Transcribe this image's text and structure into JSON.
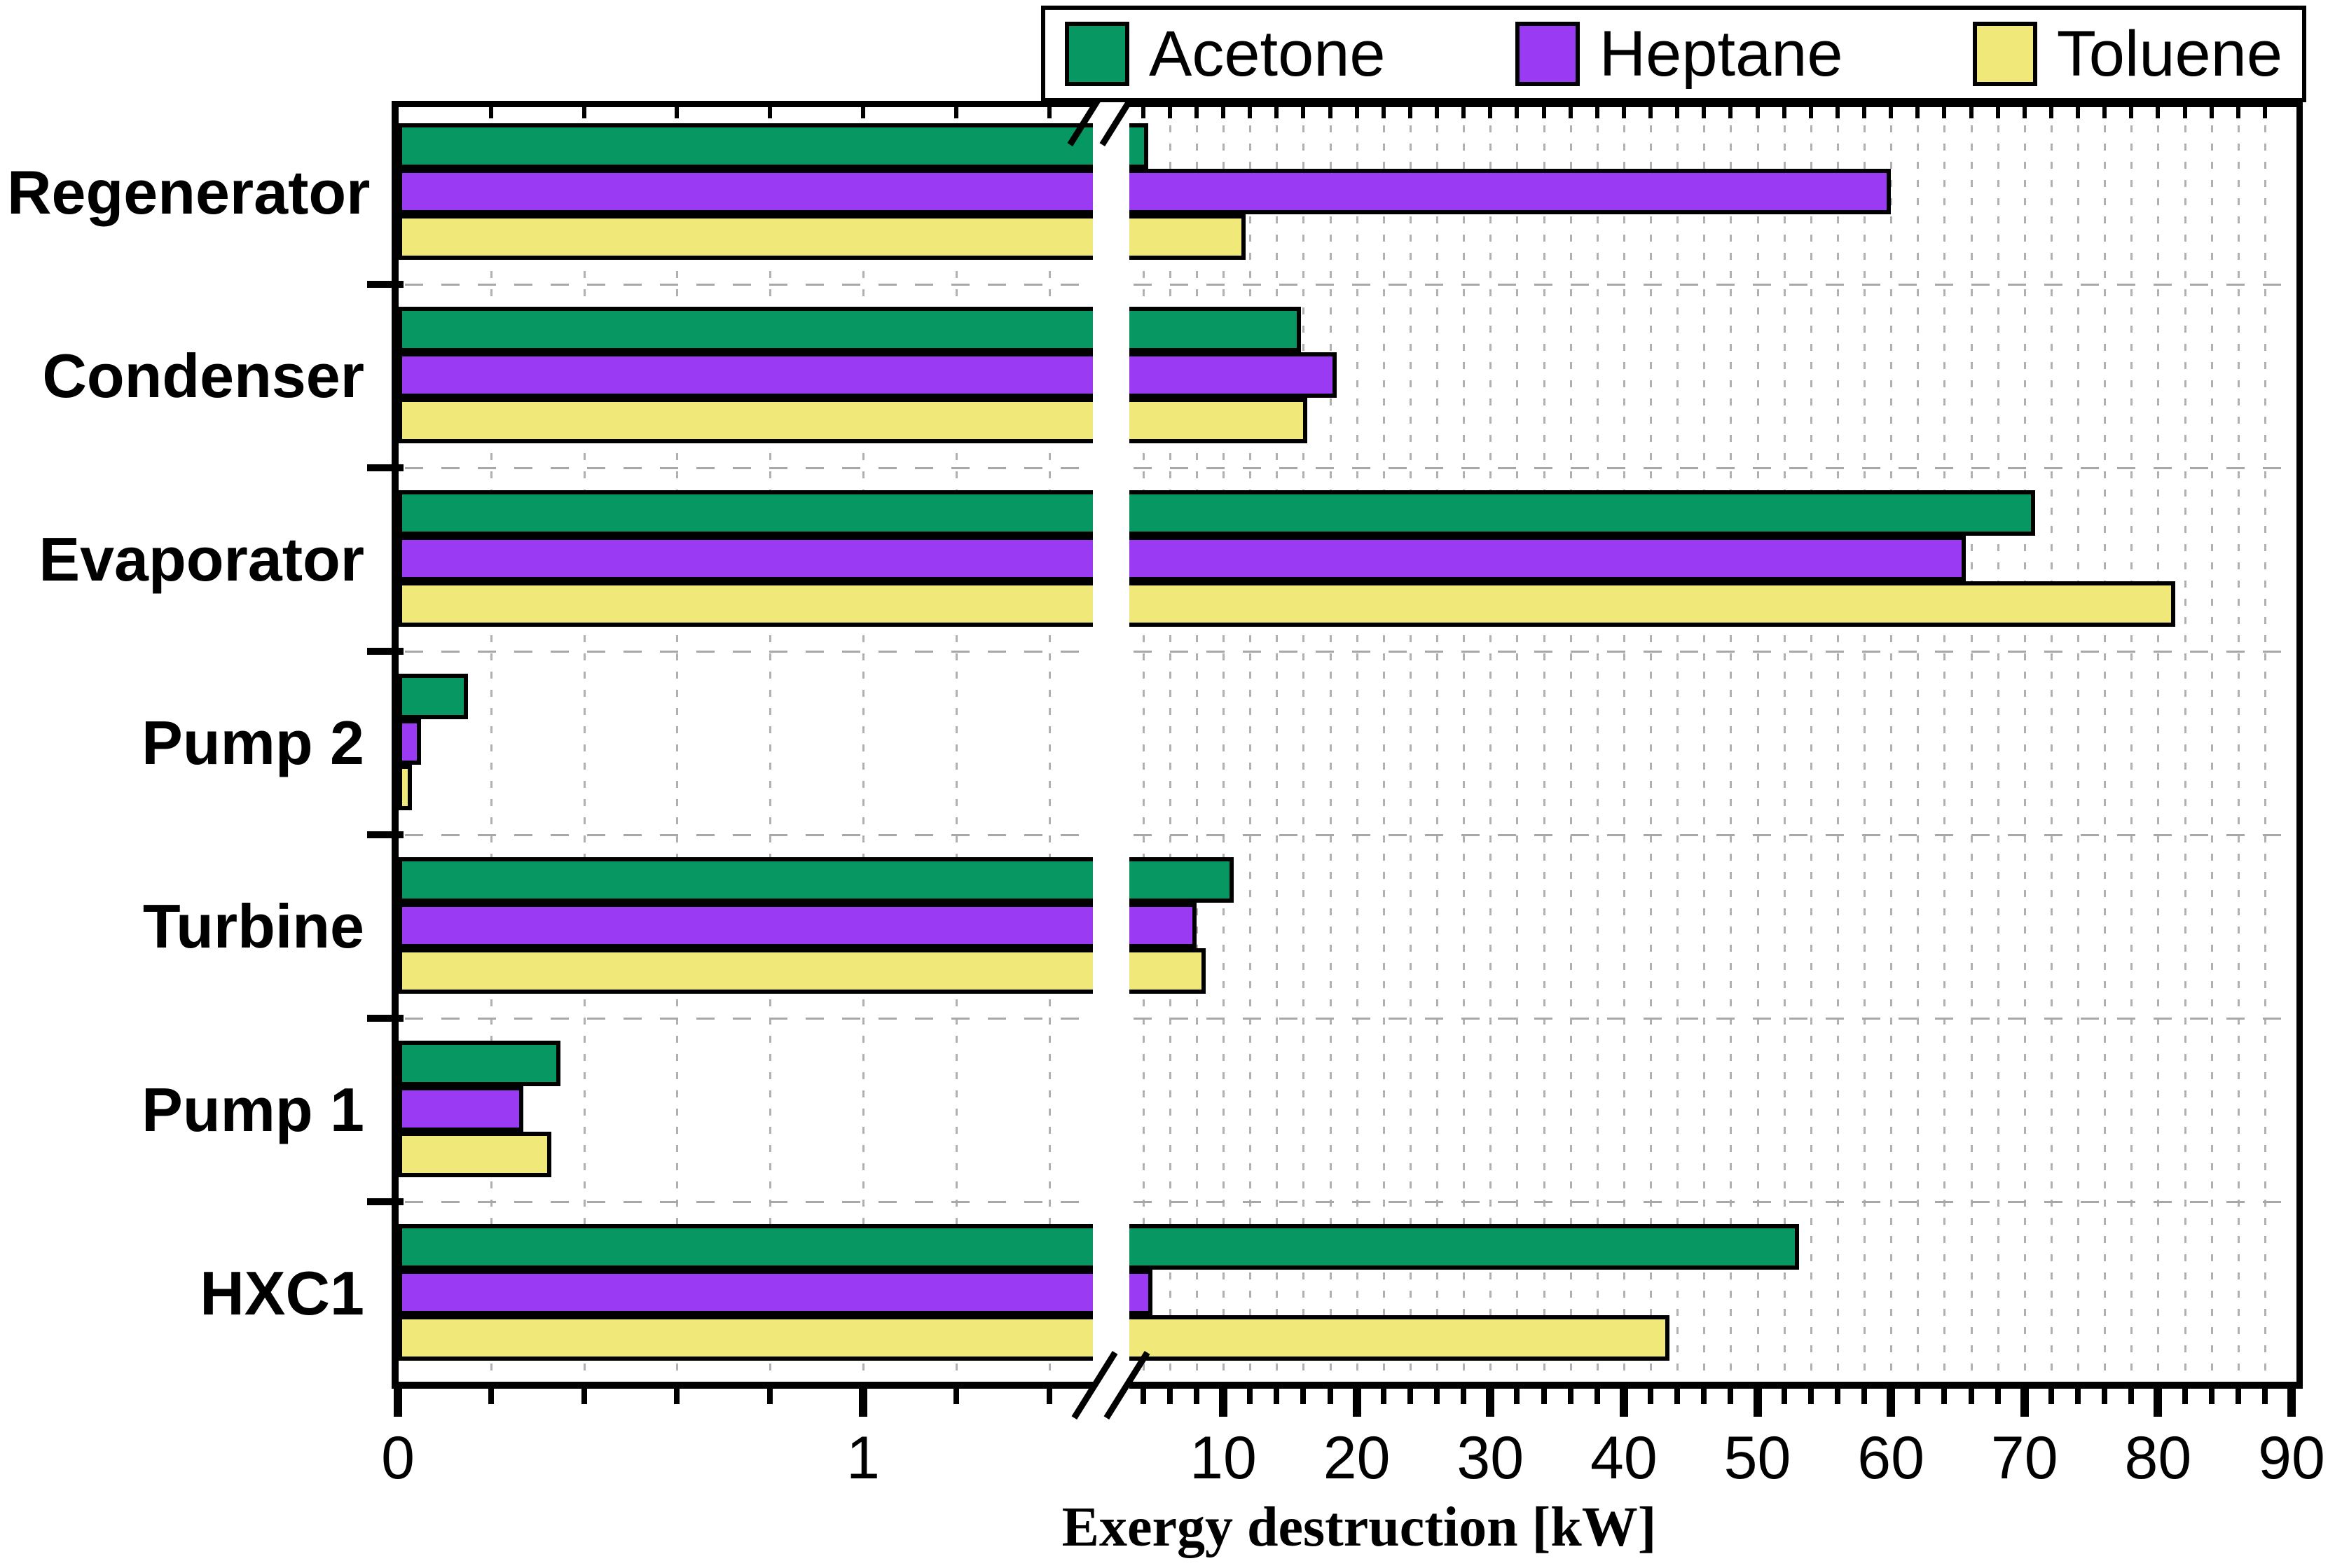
{
  "chart_data": {
    "type": "bar",
    "orientation": "horizontal",
    "title": "",
    "xlabel": "Exergy destruction [kW]",
    "categories": [
      "Regenerator",
      "Condenser",
      "Evaporator",
      "Pump 2",
      "Turbine",
      "Pump 1",
      "HXC1"
    ],
    "series": [
      {
        "name": "Acetone",
        "color": "#079763",
        "values": [
          4.4,
          15.8,
          70.8,
          0.15,
          10.8,
          0.35,
          53.1
        ]
      },
      {
        "name": "Heptane",
        "color": "#9a3af3",
        "values": [
          60.0,
          18.5,
          65.6,
          0.05,
          8.0,
          0.27,
          4.7
        ]
      },
      {
        "name": "Toluene",
        "color": "#f0e97a",
        "values": [
          11.7,
          16.3,
          81.3,
          0.03,
          8.7,
          0.33,
          43.4
        ]
      }
    ],
    "x_axis": {
      "broken": true,
      "break_between_values": [
        1.5,
        3
      ],
      "segments": [
        {
          "min": 0,
          "max": 1.5,
          "major_ticks": [
            0,
            1
          ],
          "minor_step": 0.2
        },
        {
          "min": 3,
          "max": 90,
          "major_ticks": [
            10,
            20,
            30,
            40,
            50,
            60,
            70,
            80,
            90
          ],
          "minor_step": 2
        }
      ],
      "tick_labels": [
        "0",
        "1",
        "10",
        "20",
        "30",
        "40",
        "50",
        "60",
        "70",
        "80",
        "90"
      ]
    },
    "legend": {
      "position": "top-right",
      "labels": [
        "Acetone",
        "Heptane",
        "Toluene"
      ]
    },
    "grid": "dashed",
    "ylim_categories_top_to_bottom": [
      "Regenerator",
      "Condenser",
      "Evaporator",
      "Pump 2",
      "Turbine",
      "Pump 1",
      "HXC1"
    ]
  },
  "colors": {
    "acetone": "#079763",
    "heptane": "#9a3af3",
    "toluene": "#f0e97a",
    "bar_border": "#000000",
    "gridline": "#b0b0b0",
    "axis": "#000000",
    "background": "#ffffff"
  }
}
